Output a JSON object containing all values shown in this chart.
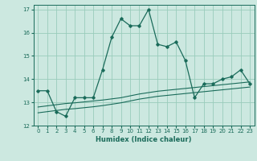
{
  "title": "",
  "xlabel": "Humidex (Indice chaleur)",
  "ylabel": "",
  "background_color": "#cce8e0",
  "grid_color": "#99ccbb",
  "line_color": "#1a6b5a",
  "xlim": [
    -0.5,
    23.5
  ],
  "ylim": [
    12,
    17.2
  ],
  "yticks": [
    12,
    13,
    14,
    15,
    16,
    17
  ],
  "xticks": [
    0,
    1,
    2,
    3,
    4,
    5,
    6,
    7,
    8,
    9,
    10,
    11,
    12,
    13,
    14,
    15,
    16,
    17,
    18,
    19,
    20,
    21,
    22,
    23
  ],
  "main_x": [
    0,
    1,
    2,
    3,
    4,
    5,
    6,
    7,
    8,
    9,
    10,
    11,
    12,
    13,
    14,
    15,
    16,
    17,
    18,
    19,
    20,
    21,
    22,
    23
  ],
  "main_y": [
    13.5,
    13.5,
    12.6,
    12.4,
    13.2,
    13.2,
    13.2,
    14.4,
    15.8,
    16.6,
    16.3,
    16.3,
    17.0,
    15.5,
    15.4,
    15.6,
    14.8,
    13.2,
    13.8,
    13.8,
    14.0,
    14.1,
    14.4,
    13.8
  ],
  "line1_x": [
    0,
    1,
    2,
    3,
    4,
    5,
    6,
    7,
    8,
    9,
    10,
    11,
    12,
    13,
    14,
    15,
    16,
    17,
    18,
    19,
    20,
    21,
    22,
    23
  ],
  "line1_y": [
    12.8,
    12.85,
    12.9,
    12.95,
    12.98,
    13.02,
    13.06,
    13.1,
    13.15,
    13.2,
    13.28,
    13.36,
    13.42,
    13.48,
    13.52,
    13.56,
    13.6,
    13.64,
    13.68,
    13.72,
    13.76,
    13.8,
    13.84,
    13.88
  ],
  "line2_x": [
    0,
    1,
    2,
    3,
    4,
    5,
    6,
    7,
    8,
    9,
    10,
    11,
    12,
    13,
    14,
    15,
    16,
    17,
    18,
    19,
    20,
    21,
    22,
    23
  ],
  "line2_y": [
    12.55,
    12.6,
    12.65,
    12.7,
    12.73,
    12.77,
    12.81,
    12.86,
    12.92,
    12.98,
    13.06,
    13.14,
    13.2,
    13.26,
    13.3,
    13.34,
    13.38,
    13.42,
    13.46,
    13.5,
    13.54,
    13.58,
    13.62,
    13.66
  ]
}
